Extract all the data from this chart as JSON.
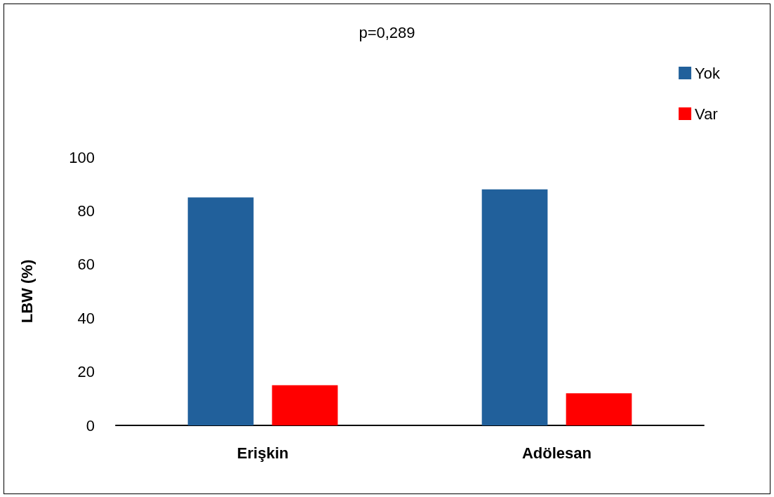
{
  "chart_data": {
    "type": "bar",
    "title": "p=0,289",
    "ylabel": "LBW (%)",
    "categories": [
      "Erişkin",
      "Adölesan"
    ],
    "series": [
      {
        "name": "Yok",
        "color": "#21609b",
        "values": [
          85,
          88
        ]
      },
      {
        "name": "Var",
        "color": "#ff0000",
        "values": [
          15,
          12
        ]
      }
    ],
    "ylim": [
      0,
      100
    ],
    "yticks": [
      0,
      20,
      40,
      60,
      80,
      100
    ],
    "grid": false,
    "legend": "top right"
  }
}
